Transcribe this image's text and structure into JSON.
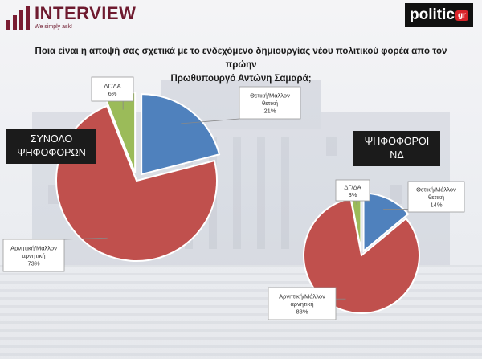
{
  "header": {
    "brand": "INTERVIEW",
    "tagline": "We simply ask!",
    "politic_main": "politic",
    "politic_suffix": "gr"
  },
  "question": {
    "line1": "Ποια είναι η άποψή σας σχετικά με το ενδεχόμενο δημιουργίας νέου πολιτικού φορέα από τον πρώην",
    "line2": "Πρωθυπουργό Αντώνη Σαμαρά;"
  },
  "segments": [
    {
      "line1": "ΣΥΝΟΛΟ",
      "line2": "ΨΗΦΟΦΟΡΩΝ"
    },
    {
      "line1": "ΨΗΦΟΦΟΡΟΙ",
      "line2": "ΝΔ"
    }
  ],
  "colors": {
    "positive": "#4f81bd",
    "negative": "#c0504d",
    "dk": "#9bbb59"
  },
  "chart_data": [
    {
      "type": "pie",
      "title": "ΣΥΝΟΛΟ ΨΗΦΟΦΟΡΩΝ",
      "slices": [
        {
          "label_lines": [
            "Θετική/Μάλλον",
            "θετική"
          ],
          "value": 21,
          "value_label": "21%"
        },
        {
          "label_lines": [
            "Αρνητική/Μάλλον",
            "αρνητική"
          ],
          "value": 73,
          "value_label": "73%"
        },
        {
          "label_lines": [
            "ΔΓ/ΔΑ"
          ],
          "value": 6,
          "value_label": "6%"
        }
      ]
    },
    {
      "type": "pie",
      "title": "ΨΗΦΟΦΟΡΟΙ ΝΔ",
      "slices": [
        {
          "label_lines": [
            "Θετική/Μάλλον",
            "θετική"
          ],
          "value": 14,
          "value_label": "14%"
        },
        {
          "label_lines": [
            "Αρνητική/Μάλλον",
            "αρνητική"
          ],
          "value": 83,
          "value_label": "83%"
        },
        {
          "label_lines": [
            "ΔΓ/ΔΑ"
          ],
          "value": 3,
          "value_label": "3%"
        }
      ]
    }
  ]
}
